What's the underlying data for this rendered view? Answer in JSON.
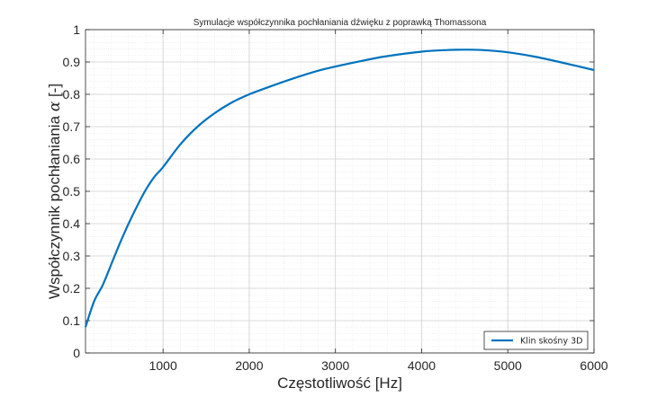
{
  "chart_data": {
    "type": "line",
    "title": "Symulacje współczynnika pochłaniania dźwięku z poprawką Thomassona",
    "xlabel": "Częstotliwość [Hz]",
    "ylabel_prefix": "Współczynnik pochłaniania ",
    "ylabel_symbol": "α",
    "ylabel_suffix": " [-]",
    "xlim": [
      100,
      6000
    ],
    "ylim": [
      0,
      1
    ],
    "x_ticks": [
      1000,
      2000,
      3000,
      4000,
      5000,
      6000
    ],
    "x_tick_labels": [
      "1000",
      "2000",
      "3000",
      "4000",
      "5000",
      "6000"
    ],
    "y_ticks": [
      0,
      0.1,
      0.2,
      0.3,
      0.4,
      0.5,
      0.6,
      0.7,
      0.8,
      0.9,
      1
    ],
    "y_tick_labels": [
      "0",
      "0.1",
      "0.2",
      "0.3",
      "0.4",
      "0.5",
      "0.6",
      "0.7",
      "0.8",
      "0.9",
      "1"
    ],
    "grid": true,
    "minor_grid": true,
    "legend_position": "bottom-right",
    "series": [
      {
        "name": "Klin skośny 3D",
        "color": "#0072BD",
        "x": [
          100,
          200,
          300,
          400,
          500,
          600,
          700,
          800,
          900,
          1000,
          1200,
          1400,
          1600,
          1800,
          2000,
          2200,
          2500,
          2800,
          3000,
          3300,
          3600,
          4000,
          4300,
          4500,
          4700,
          5000,
          5300,
          5600,
          6000
        ],
        "y": [
          0.08,
          0.16,
          0.21,
          0.275,
          0.34,
          0.4,
          0.455,
          0.505,
          0.545,
          0.575,
          0.645,
          0.7,
          0.742,
          0.775,
          0.8,
          0.82,
          0.848,
          0.873,
          0.886,
          0.903,
          0.918,
          0.932,
          0.937,
          0.938,
          0.937,
          0.93,
          0.917,
          0.9,
          0.875
        ]
      }
    ]
  }
}
